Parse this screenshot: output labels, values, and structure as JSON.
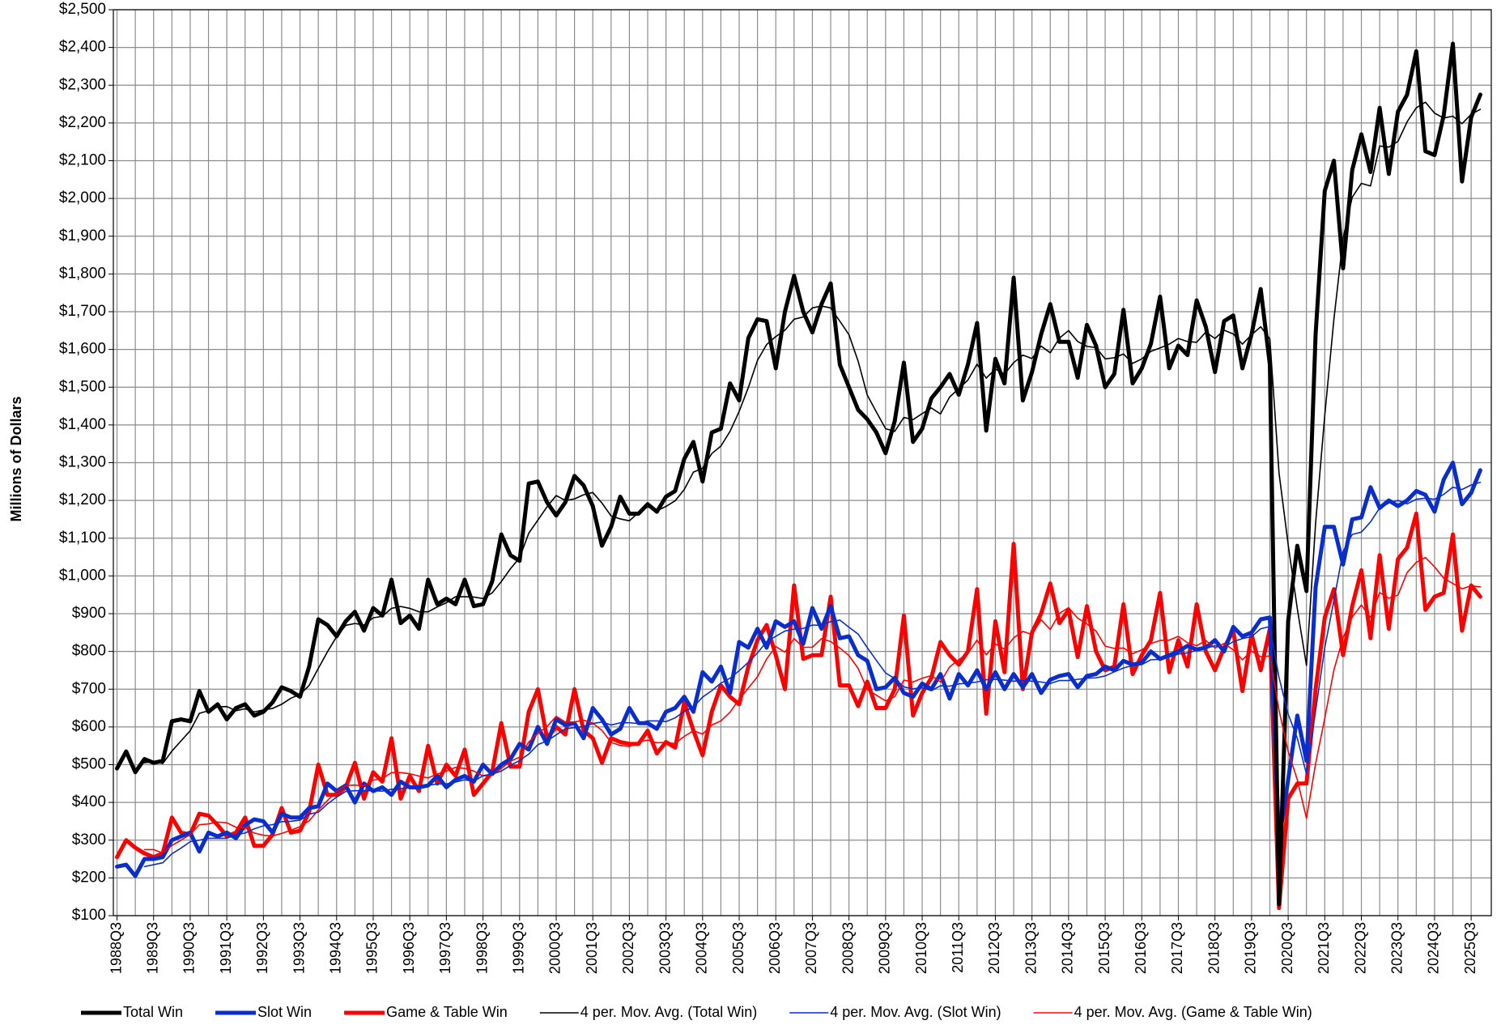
{
  "chart_data": {
    "type": "line",
    "y_label": "Millions of Dollars",
    "ylim": [
      100,
      2500
    ],
    "yticks": [
      {
        "value": 100,
        "label": "$100"
      },
      {
        "value": 200,
        "label": "$200"
      },
      {
        "value": 300,
        "label": "$300"
      },
      {
        "value": 400,
        "label": "$400"
      },
      {
        "value": 500,
        "label": "$500"
      },
      {
        "value": 600,
        "label": "$600"
      },
      {
        "value": 700,
        "label": "$700"
      },
      {
        "value": 800,
        "label": "$800"
      },
      {
        "value": 900,
        "label": "$900"
      },
      {
        "value": 1000,
        "label": "$1,000"
      },
      {
        "value": 1100,
        "label": "$1,100"
      },
      {
        "value": 1200,
        "label": "$1,200"
      },
      {
        "value": 1300,
        "label": "$1,300"
      },
      {
        "value": 1400,
        "label": "$1,400"
      },
      {
        "value": 1500,
        "label": "$1,500"
      },
      {
        "value": 1600,
        "label": "$1,600"
      },
      {
        "value": 1700,
        "label": "$1,700"
      },
      {
        "value": 1800,
        "label": "$1,800"
      },
      {
        "value": 1900,
        "label": "$1,900"
      },
      {
        "value": 2000,
        "label": "$2,000"
      },
      {
        "value": 2100,
        "label": "$2,100"
      },
      {
        "value": 2200,
        "label": "$2,200"
      },
      {
        "value": 2300,
        "label": "$2,300"
      },
      {
        "value": 2400,
        "label": "$2,400"
      },
      {
        "value": 2500,
        "label": "$2,500"
      }
    ],
    "grid": true,
    "legend": "bottom",
    "categories": [
      "1988Q3",
      null,
      null,
      null,
      "1989Q3",
      null,
      null,
      null,
      "1990Q3",
      null,
      null,
      null,
      "1991Q3",
      null,
      null,
      null,
      "1992Q3",
      null,
      null,
      null,
      "1993Q3",
      null,
      null,
      null,
      "1994Q3",
      null,
      null,
      null,
      "1995Q3",
      null,
      null,
      null,
      "1996Q3",
      null,
      null,
      null,
      "1997Q3",
      null,
      null,
      null,
      "1998Q3",
      null,
      null,
      null,
      "1999Q3",
      null,
      null,
      null,
      "2000Q3",
      null,
      null,
      null,
      "2001Q3",
      null,
      null,
      null,
      "2002Q3",
      null,
      null,
      null,
      "2003Q3",
      null,
      null,
      null,
      "2004Q3",
      null,
      null,
      null,
      "2005Q3",
      null,
      null,
      null,
      "2006Q3",
      null,
      null,
      null,
      "2007Q3",
      null,
      null,
      null,
      "2008Q3",
      null,
      null,
      null,
      "2009Q3",
      null,
      null,
      null,
      "2010Q3",
      null,
      null,
      null,
      "2011Q3",
      null,
      null,
      null,
      "2012Q3",
      null,
      null,
      null,
      "2013Q3",
      null,
      null,
      null,
      "2014Q3",
      null,
      null,
      null,
      "2015Q3",
      null,
      null,
      null,
      "2016Q3",
      null,
      null,
      null,
      "2017Q3",
      null,
      null,
      null,
      "2018Q3",
      null,
      null,
      null,
      "2019Q3",
      null,
      null,
      null,
      "2020Q3",
      null,
      null,
      null,
      "2021Q3",
      null,
      null,
      null,
      "2022Q3",
      null,
      null,
      null,
      "2023Q3",
      null,
      null,
      null,
      "2024Q3",
      null,
      null,
      null,
      "2025Q3",
      null
    ],
    "series": [
      {
        "name": "Total Win",
        "color": "#000000",
        "values": [
          490,
          535,
          480,
          515,
          505,
          510,
          615,
          620,
          615,
          695,
          640,
          660,
          620,
          650,
          660,
          630,
          640,
          665,
          705,
          695,
          680,
          760,
          885,
          870,
          840,
          880,
          905,
          855,
          915,
          895,
          990,
          875,
          895,
          860,
          990,
          925,
          940,
          925,
          990,
          920,
          925,
          985,
          1110,
          1055,
          1040,
          1245,
          1250,
          1195,
          1160,
          1195,
          1265,
          1240,
          1185,
          1080,
          1130,
          1210,
          1165,
          1165,
          1190,
          1170,
          1210,
          1225,
          1310,
          1355,
          1250,
          1380,
          1390,
          1510,
          1465,
          1630,
          1680,
          1675,
          1550,
          1700,
          1795,
          1700,
          1645,
          1720,
          1775,
          1560,
          1500,
          1440,
          1415,
          1380,
          1325,
          1410,
          1565,
          1355,
          1390,
          1470,
          1500,
          1535,
          1480,
          1560,
          1670,
          1385,
          1575,
          1510,
          1790,
          1465,
          1540,
          1640,
          1720,
          1620,
          1620,
          1525,
          1665,
          1610,
          1500,
          1535,
          1705,
          1510,
          1550,
          1615,
          1740,
          1550,
          1610,
          1585,
          1730,
          1660,
          1540,
          1675,
          1690,
          1550,
          1640,
          1760,
          1560,
          130,
          880,
          1080,
          960,
          1640,
          2020,
          2100,
          1815,
          2075,
          2170,
          2070,
          2240,
          2065,
          2230,
          2275,
          2390,
          2125,
          2115,
          2220,
          2410,
          2045,
          2215,
          2275
        ]
      },
      {
        "name": "Slot Win",
        "color": "#0a2ecc",
        "values": [
          230,
          235,
          205,
          250,
          250,
          255,
          300,
          310,
          320,
          270,
          320,
          310,
          320,
          305,
          340,
          355,
          350,
          320,
          370,
          360,
          360,
          385,
          390,
          450,
          430,
          445,
          400,
          450,
          430,
          440,
          420,
          455,
          440,
          440,
          445,
          470,
          440,
          460,
          470,
          455,
          500,
          475,
          500,
          515,
          555,
          540,
          600,
          555,
          620,
          605,
          610,
          570,
          650,
          620,
          580,
          595,
          650,
          610,
          610,
          595,
          640,
          650,
          680,
          640,
          745,
          720,
          760,
          690,
          825,
          810,
          860,
          810,
          880,
          865,
          880,
          820,
          915,
          860,
          920,
          835,
          840,
          790,
          775,
          700,
          705,
          730,
          690,
          680,
          715,
          700,
          740,
          675,
          740,
          710,
          750,
          700,
          745,
          700,
          740,
          705,
          740,
          690,
          725,
          735,
          740,
          705,
          735,
          740,
          760,
          750,
          775,
          765,
          770,
          800,
          780,
          790,
          800,
          815,
          805,
          810,
          830,
          800,
          865,
          840,
          850,
          885,
          890,
          300,
          460,
          630,
          510,
          970,
          1130,
          1130,
          1030,
          1150,
          1155,
          1235,
          1180,
          1200,
          1185,
          1200,
          1225,
          1215,
          1170,
          1255,
          1300,
          1190,
          1220,
          1280
        ]
      },
      {
        "name": "Game & Table Win",
        "color": "#ff0000",
        "values": [
          255,
          300,
          280,
          265,
          255,
          265,
          360,
          320,
          315,
          370,
          365,
          340,
          310,
          320,
          360,
          285,
          285,
          315,
          385,
          320,
          325,
          375,
          500,
          420,
          420,
          440,
          505,
          410,
          480,
          455,
          570,
          410,
          470,
          430,
          550,
          450,
          500,
          470,
          540,
          420,
          450,
          480,
          610,
          495,
          495,
          640,
          700,
          570,
          600,
          580,
          700,
          590,
          570,
          505,
          570,
          560,
          555,
          555,
          590,
          530,
          560,
          545,
          665,
          590,
          525,
          640,
          710,
          680,
          660,
          760,
          830,
          870,
          790,
          700,
          975,
          780,
          790,
          790,
          945,
          710,
          710,
          655,
          720,
          650,
          650,
          700,
          895,
          630,
          690,
          730,
          825,
          790,
          765,
          800,
          965,
          635,
          880,
          745,
          1085,
          700,
          850,
          900,
          980,
          875,
          910,
          785,
          920,
          800,
          750,
          760,
          925,
          740,
          790,
          830,
          955,
          745,
          830,
          760,
          925,
          800,
          750,
          810,
          855,
          695,
          845,
          750,
          860,
          120,
          410,
          450,
          450,
          700,
          890,
          965,
          790,
          920,
          1015,
          835,
          1055,
          860,
          1045,
          1075,
          1165,
          910,
          945,
          955,
          1110,
          855,
          975,
          945
        ]
      },
      {
        "name": "4 per. Mov. Avg. (Total Win)",
        "color": "#000000",
        "values": [
          null,
          null,
          null,
          505,
          509,
          503,
          536,
          563,
          590,
          636,
          643,
          653,
          654,
          643,
          648,
          640,
          645,
          649,
          660,
          676,
          686,
          710,
          755,
          799,
          839,
          869,
          874,
          870,
          889,
          893,
          914,
          919,
          914,
          905,
          905,
          918,
          929,
          945,
          945,
          944,
          940,
          955,
          985,
          1019,
          1048,
          1113,
          1148,
          1183,
          1213,
          1200,
          1204,
          1215,
          1221,
          1193,
          1159,
          1151,
          1146,
          1168,
          1183,
          1173,
          1184,
          1199,
          1229,
          1275,
          1285,
          1324,
          1344,
          1383,
          1436,
          1499,
          1571,
          1613,
          1634,
          1651,
          1680,
          1686,
          1710,
          1715,
          1710,
          1675,
          1639,
          1569,
          1479,
          1434,
          1390,
          1383,
          1420,
          1414,
          1430,
          1445,
          1429,
          1474,
          1496,
          1519,
          1561,
          1524,
          1548,
          1535,
          1565,
          1585,
          1576,
          1609,
          1591,
          1630,
          1650,
          1621,
          1608,
          1605,
          1575,
          1578,
          1588,
          1563,
          1575,
          1595,
          1604,
          1614,
          1629,
          1621,
          1619,
          1646,
          1629,
          1651,
          1641,
          1614,
          1639,
          1660,
          1628,
          1273,
          1083,
          913,
          763,
          1140,
          1425,
          1680,
          1894,
          2003,
          2040,
          2033,
          2139,
          2136,
          2151,
          2203,
          2240,
          2255,
          2226,
          2213,
          2218,
          2198,
          2223,
          2236
        ]
      },
      {
        "name": "4 per. Mov. Avg. (Slot Win)",
        "color": "#0a2ecc",
        "values": [
          null,
          null,
          null,
          230,
          235,
          240,
          264,
          279,
          296,
          300,
          305,
          305,
          305,
          314,
          319,
          330,
          338,
          341,
          349,
          350,
          353,
          369,
          374,
          396,
          414,
          429,
          431,
          431,
          431,
          430,
          435,
          436,
          439,
          439,
          445,
          449,
          449,
          454,
          460,
          456,
          471,
          475,
          483,
          498,
          511,
          528,
          553,
          563,
          579,
          595,
          598,
          601,
          609,
          613,
          605,
          611,
          611,
          609,
          616,
          616,
          614,
          624,
          641,
          653,
          679,
          696,
          716,
          729,
          749,
          771,
          796,
          826,
          840,
          854,
          859,
          861,
          870,
          869,
          879,
          883,
          864,
          846,
          810,
          776,
          743,
          728,
          706,
          701,
          704,
          696,
          709,
          708,
          714,
          716,
          719,
          725,
          726,
          724,
          721,
          723,
          721,
          719,
          715,
          723,
          723,
          726,
          729,
          730,
          735,
          746,
          756,
          763,
          765,
          778,
          779,
          785,
          793,
          796,
          803,
          808,
          815,
          811,
          826,
          834,
          839,
          860,
          866,
          731,
          634,
          570,
          475,
          643,
          810,
          935,
          1065,
          1110,
          1116,
          1143,
          1180,
          1193,
          1200,
          1191,
          1203,
          1206,
          1203,
          1216,
          1235,
          1229,
          1241,
          1248
        ]
      },
      {
        "name": "4 per. Mov. Avg. (Game & Table Win)",
        "color": "#ff0000",
        "values": [
          null,
          null,
          null,
          275,
          275,
          266,
          286,
          300,
          315,
          341,
          343,
          348,
          346,
          334,
          333,
          319,
          313,
          311,
          318,
          326,
          336,
          351,
          380,
          405,
          429,
          445,
          446,
          444,
          459,
          463,
          479,
          479,
          476,
          470,
          465,
          475,
          483,
          493,
          490,
          483,
          470,
          473,
          490,
          509,
          520,
          560,
          583,
          601,
          628,
          613,
          613,
          618,
          610,
          591,
          559,
          551,
          548,
          560,
          565,
          558,
          559,
          556,
          575,
          590,
          581,
          605,
          616,
          639,
          673,
          703,
          733,
          780,
          813,
          798,
          834,
          811,
          811,
          834,
          826,
          809,
          789,
          755,
          699,
          684,
          669,
          680,
          724,
          719,
          729,
          736,
          719,
          759,
          778,
          795,
          830,
          791,
          820,
          806,
          836,
          853,
          845,
          884,
          858,
          901,
          916,
          888,
          873,
          854,
          814,
          808,
          809,
          794,
          804,
          821,
          829,
          830,
          840,
          823,
          815,
          829,
          809,
          821,
          804,
          778,
          801,
          786,
          788,
          644,
          535,
          460,
          358,
          503,
          623,
          751,
          836,
          891,
          923,
          890,
          956,
          941,
          949,
          1009,
          1036,
          1049,
          1024,
          994,
          980,
          966,
          974,
          971
        ]
      }
    ]
  }
}
